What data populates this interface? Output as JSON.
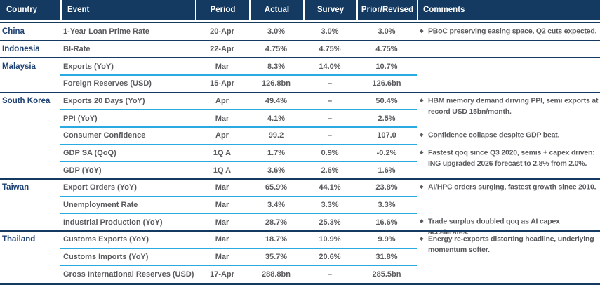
{
  "colors": {
    "header_bg": "#143a61",
    "separator_navy": "#143a61",
    "separator_cyan": "#29abe2",
    "country_text": "#1e4173",
    "body_text": "#5a5a5e",
    "header_text": "#ffffff"
  },
  "bullet_glyph": "◆",
  "table": {
    "headers": [
      {
        "label": "Country"
      },
      {
        "label": "Event"
      },
      {
        "label": "Period"
      },
      {
        "label": "Actual"
      },
      {
        "label": "Survey"
      },
      {
        "label": "Prior/Revised"
      },
      {
        "label": "Comments"
      }
    ],
    "groups": [
      {
        "country": "China",
        "rows": [
          {
            "event": "1-Year Loan Prime Rate",
            "period": "20-Apr",
            "actual": "3.0%",
            "survey": "3.0%",
            "prior": "3.0%"
          }
        ],
        "comments": [
          {
            "row": 0,
            "text": "PBoC preserving easing space, Q2 cuts expected."
          }
        ]
      },
      {
        "country": "Indonesia",
        "rows": [
          {
            "event": "BI-Rate",
            "period": "22-Apr",
            "actual": "4.75%",
            "survey": "4.75%",
            "prior": "4.75%"
          }
        ],
        "comments": []
      },
      {
        "country": "Malaysia",
        "rows": [
          {
            "event": "Exports (YoY)",
            "period": "Mar",
            "actual": "8.3%",
            "survey": "14.0%",
            "prior": "10.7%"
          },
          {
            "event": "Foreign Reserves (USD)",
            "period": "15-Apr",
            "actual": "126.8bn",
            "survey": "–",
            "prior": "126.6bn"
          }
        ],
        "comments": []
      },
      {
        "country": "South Korea",
        "rows": [
          {
            "event": "Exports 20 Days (YoY)",
            "period": "Apr",
            "actual": "49.4%",
            "survey": "–",
            "prior": "50.4%"
          },
          {
            "event": "PPI (YoY)",
            "period": "Mar",
            "actual": "4.1%",
            "survey": "–",
            "prior": "2.5%"
          },
          {
            "event": "Consumer Confidence",
            "period": "Apr",
            "actual": "99.2",
            "survey": "–",
            "prior": "107.0"
          },
          {
            "event": "GDP SA (QoQ)",
            "period": "1Q A",
            "actual": "1.7%",
            "survey": "0.9%",
            "prior": "-0.2%"
          },
          {
            "event": "GDP (YoY)",
            "period": "1Q A",
            "actual": "3.6%",
            "survey": "2.6%",
            "prior": "1.6%"
          }
        ],
        "comments": [
          {
            "row": 0,
            "text": "HBM memory demand driving PPI, semi exports at record USD 15bn/month."
          },
          {
            "row": 2,
            "text": "Confidence collapse despite GDP beat."
          },
          {
            "row": 3,
            "text": "Fastest qoq since Q3 2020, semis + capex driven: ING upgraded 2026 forecast to 2.8% from 2.0%."
          }
        ]
      },
      {
        "country": "Taiwan",
        "rows": [
          {
            "event": "Export Orders (YoY)",
            "period": "Mar",
            "actual": "65.9%",
            "survey": "44.1%",
            "prior": "23.8%"
          },
          {
            "event": "Unemployment Rate",
            "period": "Mar",
            "actual": "3.4%",
            "survey": "3.3%",
            "prior": "3.3%"
          },
          {
            "event": "Industrial Production (YoY)",
            "period": "Mar",
            "actual": "28.7%",
            "survey": "25.3%",
            "prior": "16.6%"
          }
        ],
        "comments": [
          {
            "row": 0,
            "text": "AI/HPC orders surging, fastest growth since 2010."
          },
          {
            "row": 2,
            "text": "Trade surplus doubled qoq as AI capex accelerates."
          }
        ]
      },
      {
        "country": "Thailand",
        "rows": [
          {
            "event": "Customs Exports (YoY)",
            "period": "Mar",
            "actual": "18.7%",
            "survey": "10.9%",
            "prior": "9.9%"
          },
          {
            "event": "Customs Imports (YoY)",
            "period": "Mar",
            "actual": "35.7%",
            "survey": "20.6%",
            "prior": "31.8%"
          },
          {
            "event": "Gross International Reserves (USD)",
            "period": "17-Apr",
            "actual": "288.8bn",
            "survey": "–",
            "prior": "285.5bn"
          }
        ],
        "comments": [
          {
            "row": 0,
            "text": "Energy re-exports distorting headline, underlying momentum softer."
          }
        ]
      }
    ]
  }
}
